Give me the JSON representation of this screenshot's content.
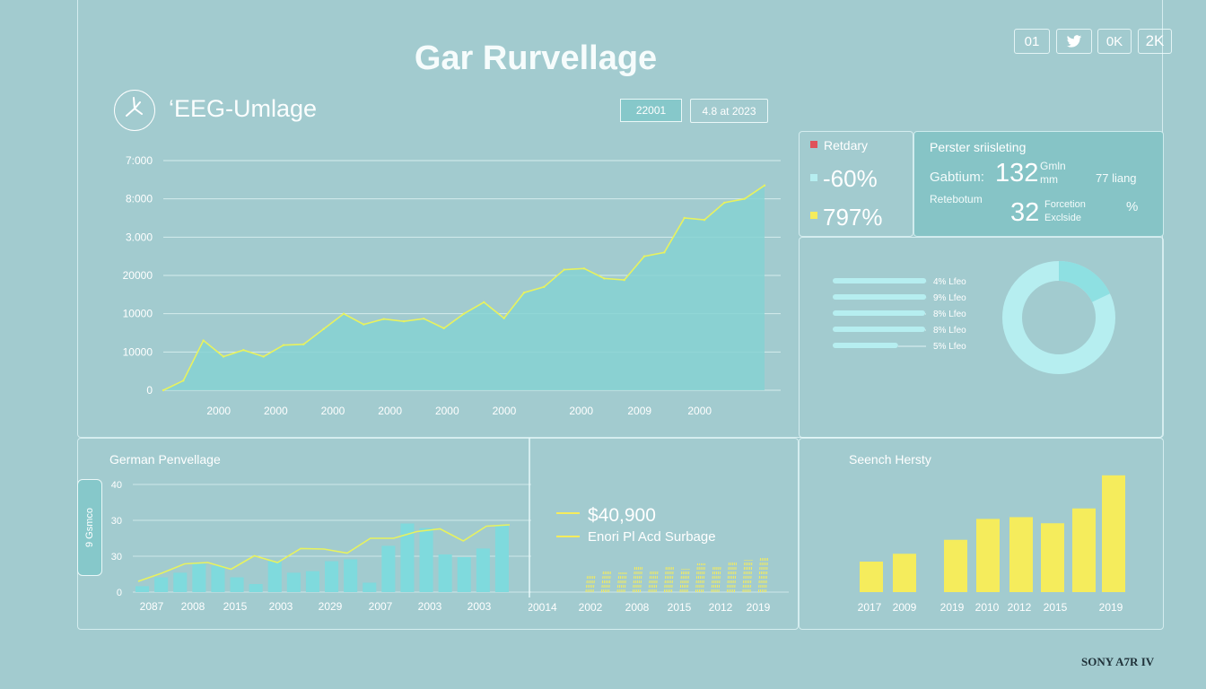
{
  "dashboard_title": "Gar Rurvellage",
  "top_buttons": [
    "01",
    "twitter",
    "0K",
    "2K"
  ],
  "main_panel": {
    "title": "‘EEG-Umlage",
    "date_chips": [
      "22001",
      "4.8 at 2023"
    ]
  },
  "stats_panel": {
    "legend_label": "Retdary",
    "values": [
      {
        "text": "-60%",
        "color": "#b6eef0"
      },
      {
        "text": "797%",
        "color": "#f5ec5c"
      }
    ]
  },
  "info_panel": {
    "title": "Perster sriisleting",
    "row1_label": "Gabtium:",
    "row1_value": "132",
    "row1_unit_top": "Gmln",
    "row1_unit_bottom": "mm",
    "row1_right": "77 liang",
    "row2_label": "Retebotum",
    "row2_value": "32",
    "row2_unit_top": "Forcetion",
    "row2_unit_bottom": "Exclside",
    "row2_right": "%"
  },
  "bars_panel": {
    "labels": [
      "4% Lfeo",
      "9% Lfeo",
      "8% Lfeo",
      "8% Lfeo",
      "5% Lfeo"
    ],
    "values": [
      0.93,
      0.93,
      0.92,
      0.92,
      0.65
    ]
  },
  "donut": {
    "highlight_fraction": 0.18
  },
  "bottom_left": {
    "title": "German Penvellage",
    "side_tab": "9 Gsmco"
  },
  "bottom_mid": {
    "legend": [
      {
        "text": "$40,900"
      },
      {
        "text": "Enori Pl Acd Surbage"
      }
    ]
  },
  "bottom_right": {
    "title": "Seench Hersty"
  },
  "watermark": "SONY A7R IV",
  "colors": {
    "background": "#a2cbcf",
    "area": "#86d2d2",
    "line": "#e8f25e",
    "bar_cyan": "#7fdadd",
    "bar_yellow": "#f5ec5c"
  },
  "chart_data": [
    {
      "type": "area",
      "title": "‘EEG-Umlage",
      "y_ticks": [
        "7:000",
        "8:000",
        "3.000",
        "20000",
        "10000",
        "10000",
        "0"
      ],
      "x_tick_labels": [
        "2000",
        "2000",
        "2000",
        "2000",
        "2000",
        "2000",
        "2000",
        "2009",
        "2000"
      ],
      "ylim": [
        0,
        6
      ],
      "values": [
        0.0,
        0.25,
        1.3,
        0.88,
        1.05,
        0.88,
        1.18,
        1.2,
        1.6,
        2.0,
        1.72,
        1.86,
        1.8,
        1.87,
        1.62,
        2.0,
        2.3,
        1.88,
        2.55,
        2.7,
        3.15,
        3.18,
        2.92,
        2.88,
        3.5,
        3.6,
        4.5,
        4.45,
        4.9,
        5.0,
        5.35
      ]
    },
    {
      "type": "bar",
      "title": "German Penvellage",
      "y_ticks": [
        "40",
        "30",
        "30",
        "0"
      ],
      "x_tick_labels": [
        "2087",
        "2008",
        "2015",
        "2003",
        "2029",
        "2007",
        "2003",
        "2003"
      ],
      "ylim": [
        0,
        4
      ],
      "bars": [
        0.22,
        0.55,
        0.72,
        1.05,
        0.98,
        0.55,
        0.3,
        1.15,
        0.72,
        0.78,
        1.15,
        1.22,
        0.35,
        1.72,
        2.55,
        2.38,
        1.4,
        1.3,
        1.62,
        2.48
      ],
      "line": [
        0.4,
        0.7,
        1.05,
        1.1,
        0.85,
        1.35,
        1.1,
        1.62,
        1.6,
        1.45,
        2.0,
        2.0,
        2.25,
        2.35,
        1.9,
        2.45,
        2.5
      ]
    },
    {
      "type": "bar",
      "title": "Enori Pl Acd Surbage",
      "x_tick_labels": [
        "20014",
        "2002",
        "2008",
        "2015",
        "2012",
        "2019"
      ],
      "series": [
        {
          "name": "$40,900",
          "values": [
            0.5,
            0.6,
            0.55,
            0.7,
            0.6,
            0.75,
            0.65,
            0.8,
            0.7,
            0.85,
            0.9,
            0.95
          ]
        }
      ]
    },
    {
      "type": "bar",
      "title": "Seench Hersty",
      "x_tick_labels": [
        "2017",
        "2009",
        "2019",
        "2010",
        "2012",
        "2015",
        "2019"
      ],
      "values": [
        35,
        44,
        60,
        84,
        86,
        79,
        96,
        134
      ]
    }
  ]
}
